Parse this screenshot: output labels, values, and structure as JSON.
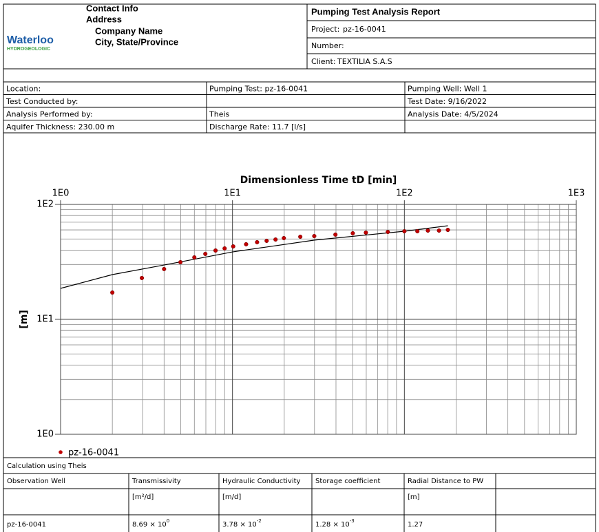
{
  "header": {
    "logo": [
      "Waterloo",
      "HYDROGEOLOGIC"
    ],
    "contact": [
      "Contact Info",
      "Address",
      "Company Name",
      "City, State/Province"
    ],
    "title": "Pumping Test Analysis Report",
    "project_label": "Project:",
    "project": "pz-16-0041",
    "number_label": "Number:",
    "client_label": "Client:",
    "client": "TEXTILIA S.A.S"
  },
  "info": {
    "rows": [
      [
        "Location:",
        "Pumping Test: pz-16-0041",
        "Pumping Well: Well 1"
      ],
      [
        "Test Conducted by:",
        null,
        "Test Date: 9/16/2022"
      ],
      [
        "Analysis Performed by:",
        "Theis",
        "Analysis Date: 4/5/2024"
      ],
      [
        "Aquifer Thickness: 230.00 m",
        "Discharge Rate: 11.7 [l/s]",
        null
      ]
    ]
  },
  "chart_data": {
    "type": "scatter",
    "title": "Dimensionless Time tD [min]",
    "ylabel": "[m]",
    "xlog": true,
    "ylog": true,
    "grid": true,
    "minor_grid": true,
    "xlim": [
      1,
      1000
    ],
    "ylim": [
      1,
      100
    ],
    "xticks": [
      {
        "value": 1,
        "label": "1E0"
      },
      {
        "value": 10,
        "label": "1E1"
      },
      {
        "value": 100,
        "label": "1E2"
      },
      {
        "value": 1000,
        "label": "1E3"
      }
    ],
    "yticks": [
      {
        "value": 1,
        "label": "1E0"
      },
      {
        "value": 10,
        "label": "1E1"
      },
      {
        "value": 100,
        "label": "1E2"
      }
    ],
    "series": [
      {
        "name": "pz-16-0041",
        "color": "#c00000",
        "x": [
          2.0,
          2.97,
          4.0,
          4.98,
          6.0,
          6.95,
          7.97,
          9.0,
          10.1,
          12.0,
          13.9,
          15.8,
          17.8,
          19.9,
          24.8,
          29.9,
          39.7,
          50.1,
          59.7,
          80.1,
          100,
          119,
          137,
          159,
          179
        ],
        "values": [
          17.1,
          22.9,
          27.4,
          31.4,
          34.6,
          37.1,
          39.7,
          41.4,
          43.1,
          45.0,
          46.9,
          48.2,
          49.5,
          50.9,
          52.3,
          53.0,
          54.6,
          56.1,
          56.8,
          57.6,
          58.4,
          58.4,
          59.2,
          59.2,
          60.0
        ]
      }
    ],
    "curve": {
      "color": "#000000",
      "x": [
        1,
        2,
        4,
        10,
        30,
        100,
        179
      ],
      "values": [
        18.6,
        24.5,
        29.7,
        38.6,
        48.9,
        58.4,
        65.2
      ]
    }
  },
  "results": {
    "title": "Calculation using Theis",
    "columns": [
      {
        "name": "Observation Well",
        "unit": null
      },
      {
        "name": "Transmissivity",
        "unit": "[m²/d]"
      },
      {
        "name": "Hydraulic Conductivity",
        "unit": "[m/d]"
      },
      {
        "name": "Storage coefficient",
        "unit": null
      },
      {
        "name": "Radial Distance to PW",
        "unit": "[m]"
      }
    ],
    "rows": [
      [
        {
          "text": "pz-16-0041",
          "exp": null
        },
        {
          "text": "8.69 × 10",
          "exp": "0"
        },
        {
          "text": "3.78 × 10",
          "exp": "-2"
        },
        {
          "text": "1.28 × 10",
          "exp": "-3"
        },
        {
          "text": "1.27",
          "exp": null
        }
      ]
    ]
  }
}
